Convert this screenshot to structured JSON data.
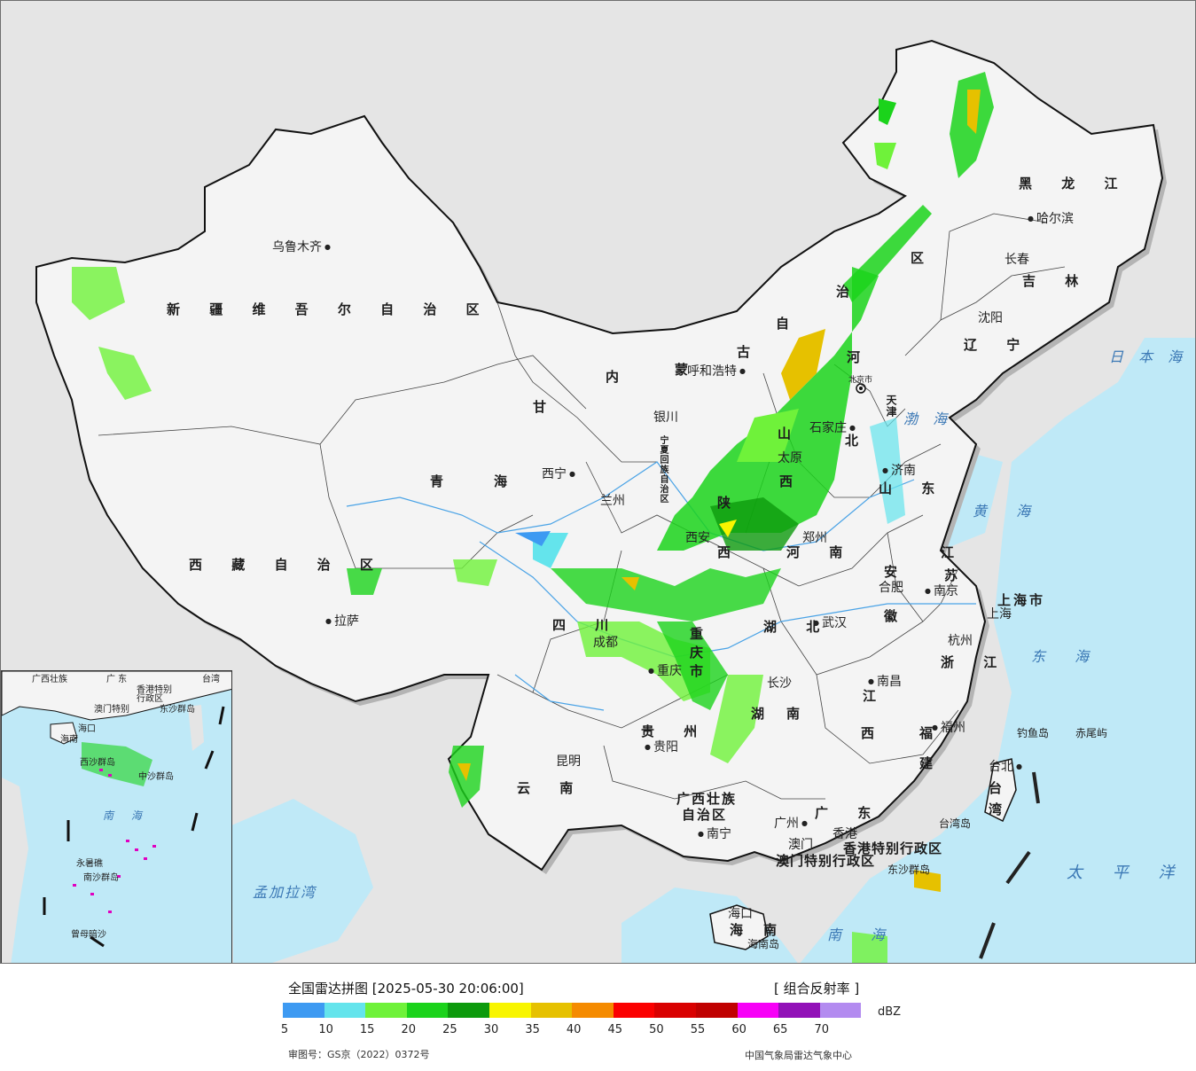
{
  "map": {
    "provinces": {
      "xinjiang": "新 疆 维 吾 尔 自 治 区",
      "tibet": "西 藏 自 治 区",
      "qinghai_1": "青",
      "qinghai_2": "海",
      "gansu": "甘",
      "neimenggu_1": "内",
      "neimenggu_2": "蒙",
      "neimenggu_3": "古",
      "neimenggu_4": "自",
      "neimenggu_5": "治",
      "neimenggu_6": "区",
      "heilongjiang": "黑 龙 江",
      "jilin": "吉 林",
      "liaoning": "辽 宁",
      "hebei_1": "河",
      "hebei_2": "北",
      "shanxi_1": "山",
      "shanxi_2": "西",
      "shandong": "山 东",
      "ningxia": "宁夏回族自治区",
      "shaanxi_1": "陕",
      "shaanxi_2": "西",
      "henan": "河 南",
      "sichuan": "四 川",
      "chongqing": "重庆市",
      "hubei": "湖 北",
      "anhui_1": "安",
      "anhui_2": "徽",
      "jiangsu_1": "江",
      "jiangsu_2": "苏",
      "shanghai": "上海市",
      "zhejiang": "浙 江",
      "jiangxi_1": "江",
      "jiangxi_2": "西",
      "hunan_1": "湖",
      "hunan_2": "南",
      "guizhou": "贵 州",
      "yunnan": "云 南",
      "guangxi_1": "广西壮族",
      "guangxi_2": "自治区",
      "guangdong": "广 东",
      "fujian_1": "福",
      "fujian_2": "建",
      "taiwan_1": "台",
      "taiwan_2": "湾",
      "hainan_1": "海",
      "hainan_2": "南",
      "hk": "香港特别行政区",
      "macao": "澳门特别行政区",
      "tianjin": "天津",
      "beijing": "北京市"
    },
    "cities": {
      "urumqi": "乌鲁木齐",
      "lhasa": "拉萨",
      "xining": "西宁",
      "lanzhou": "兰州",
      "yinchuan": "银川",
      "hohhot": "呼和浩特",
      "beijing": "北京",
      "tianjin": "天津",
      "shijiazhuang": "石家庄",
      "taiyuan": "太原",
      "jinan": "济南",
      "harbin": "哈尔滨",
      "changchun": "长春",
      "shenyang": "沈阳",
      "xian": "西安",
      "zhengzhou": "郑州",
      "chengdu": "成都",
      "chongqing": "重庆",
      "wuhan": "武汉",
      "hefei": "合肥",
      "nanjing": "南京",
      "shanghai": "上海",
      "hangzhou": "杭州",
      "nanchang": "南昌",
      "changsha": "长沙",
      "guiyang": "贵阳",
      "kunming": "昆明",
      "nanning": "南宁",
      "guangzhou": "广州",
      "xianggang": "香港",
      "aomen": "澳门",
      "fuzhou": "福州",
      "taipei": "台北",
      "haikou": "海口"
    },
    "seas": {
      "japan_sea": "日 本 海",
      "bohai": "渤 海",
      "yellow_sea": "黄 海",
      "east_sea": "东 海",
      "pacific": "太 平 洋",
      "south_sea": "南 海",
      "bengal": "孟加拉湾"
    },
    "islands": {
      "diaoyu": "钓鱼岛",
      "chiwei": "赤尾屿",
      "taiwan_island": "台湾岛",
      "dongsha": "东沙群岛",
      "hainan_island": "海南岛"
    },
    "inset": {
      "guangxi": "广西壮族",
      "guangdong": "广 东",
      "taiwan": "台湾",
      "aomen": "澳门特别",
      "hk": "香港特别",
      "region": "行政区",
      "haikou": "海口",
      "hainan": "海南",
      "xisha": "西沙群岛",
      "zhongsha": "中沙群岛",
      "nanhai": "南 海",
      "yongshu": "永暑礁",
      "nansha": "南沙群岛",
      "zengmu": "曾母暗沙",
      "dongsha": "东沙群岛"
    }
  },
  "legend": {
    "title": "全国雷达拼图 [2025-05-30 20:06:00]",
    "product": "[ 组合反射率 ]",
    "unit": "dBZ",
    "ticks": [
      "5",
      "10",
      "15",
      "20",
      "25",
      "30",
      "35",
      "40",
      "45",
      "50",
      "55",
      "60",
      "65",
      "70"
    ],
    "colors": [
      "#3d9af2",
      "#64e4ec",
      "#6ff23a",
      "#1bd31b",
      "#0c9a0c",
      "#f8f500",
      "#e6c100",
      "#f58b00",
      "#fb0000",
      "#d90000",
      "#c00000",
      "#f700f7",
      "#9211b8",
      "#b38bf0"
    ],
    "review_number": "审图号：GS京（2022）0372号",
    "source": "中国气象局雷达气象中心"
  }
}
